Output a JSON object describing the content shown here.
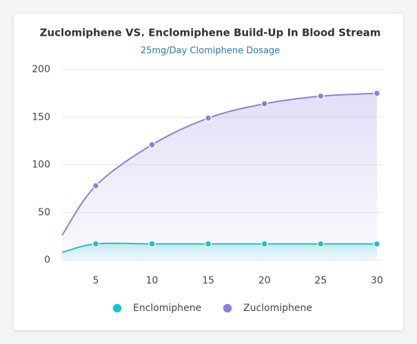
{
  "chart_data": {
    "type": "line",
    "title": "Zuclomiphene VS. Enclomiphene Build-Up In Blood Stream",
    "subtitle": "25mg/Day Clomiphene Dosage",
    "x": [
      2,
      5,
      10,
      15,
      20,
      25,
      30
    ],
    "series": [
      {
        "name": "Enclomiphene",
        "color": "#17c3cc",
        "values": [
          8,
          17,
          17,
          17,
          17,
          17,
          17
        ]
      },
      {
        "name": "Zuclomiphene",
        "color": "#8a7fdc",
        "values": [
          26,
          78,
          121,
          149,
          164,
          172,
          175
        ]
      }
    ],
    "xlim": [
      2,
      30.5
    ],
    "xticks": [
      5,
      10,
      15,
      20,
      25,
      30
    ],
    "ylim": [
      0,
      200
    ],
    "yticks": [
      0,
      50,
      100,
      150,
      200
    ],
    "grid": true,
    "area": true,
    "legend": "bottom"
  }
}
